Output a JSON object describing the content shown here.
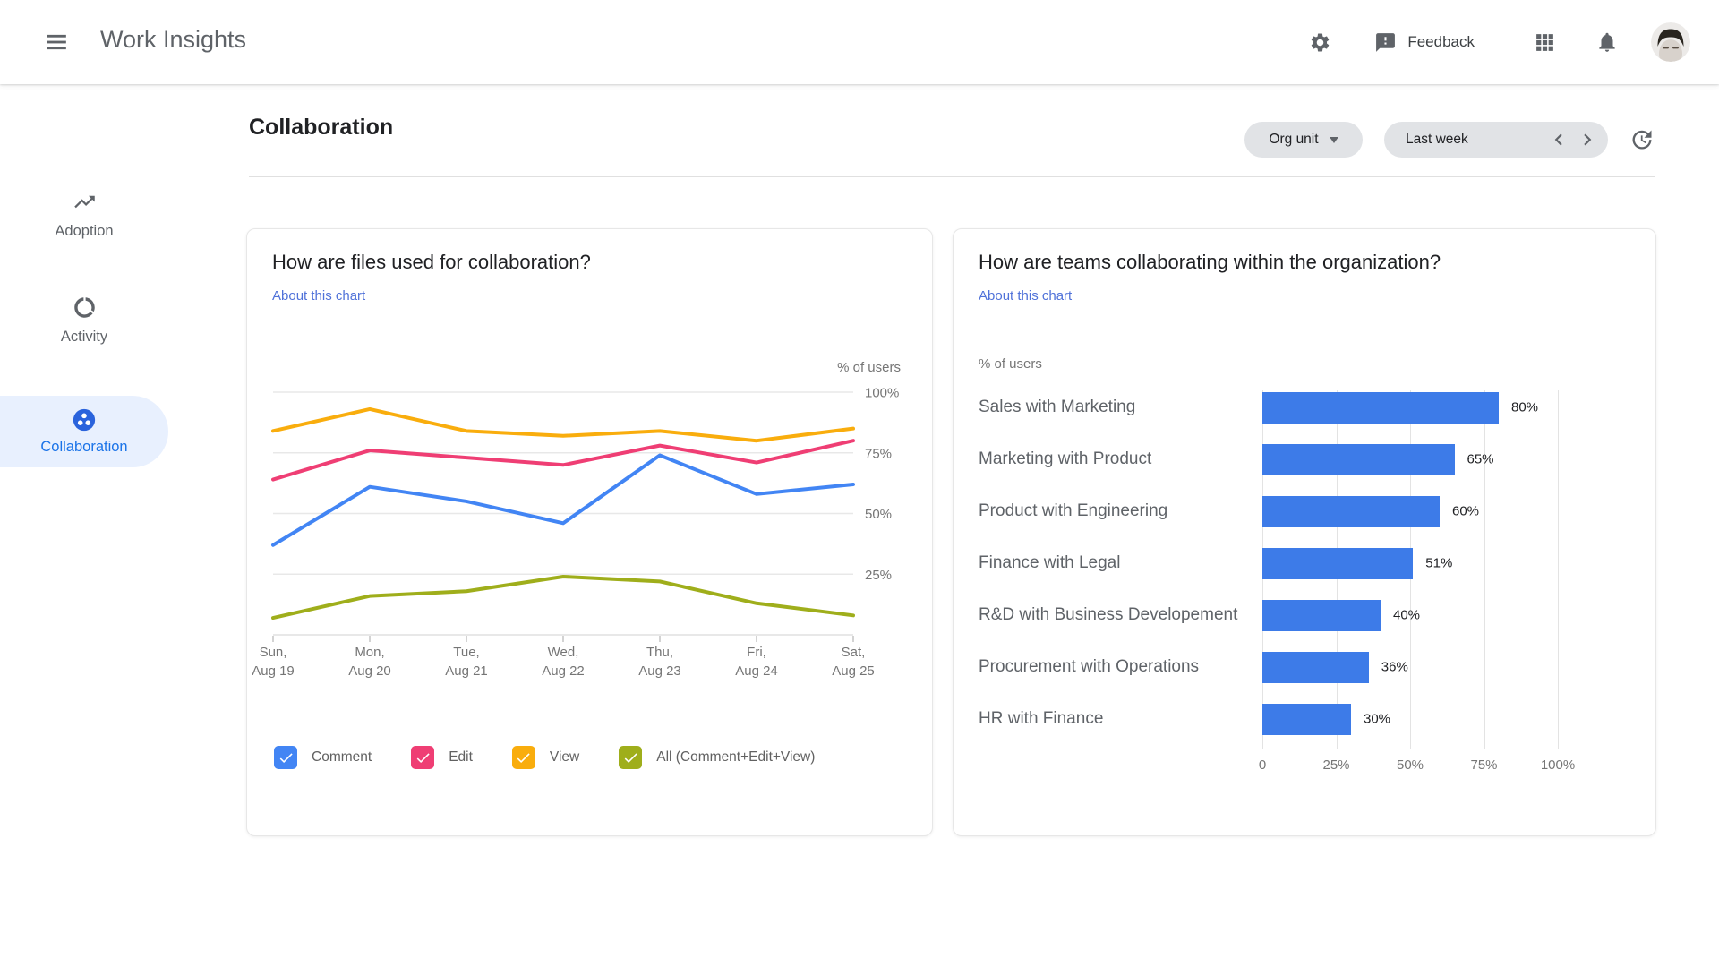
{
  "app_bar": {
    "title": "Work Insights",
    "feedback_label": "Feedback"
  },
  "sidebar": {
    "items": [
      {
        "label": "Adoption",
        "icon": "trending-up-icon",
        "selected": false
      },
      {
        "label": "Activity",
        "icon": "data-usage-icon",
        "selected": false
      },
      {
        "label": "Collaboration",
        "icon": "collaboration-icon",
        "selected": true
      }
    ]
  },
  "page": {
    "title": "Collaboration",
    "org_unit_label": "Org unit",
    "period_label": "Last week"
  },
  "colors": {
    "link_blue": "#5072d9",
    "sidebar_selected_bg": "#e8f0fe",
    "sidebar_selected_text": "#1a73e8",
    "collab_icon_blue": "#2a63dc",
    "icon_gray": "#5f6368"
  },
  "chart_data": [
    {
      "type": "line",
      "title": "How are files used for collaboration?",
      "about_link": "About this chart",
      "axis_caption": "% of users",
      "categories": [
        [
          "Sun,",
          "Aug 19"
        ],
        [
          "Mon,",
          "Aug 20"
        ],
        [
          "Tue,",
          "Aug 21"
        ],
        [
          "Wed,",
          "Aug 22"
        ],
        [
          "Thu,",
          "Aug 23"
        ],
        [
          "Fri,",
          "Aug 24"
        ],
        [
          "Sat,",
          "Aug 25"
        ]
      ],
      "ylim": [
        0,
        100
      ],
      "yticks": [
        {
          "value": 100,
          "label": "100%"
        },
        {
          "value": 75,
          "label": "75%"
        },
        {
          "value": 50,
          "label": "50%"
        },
        {
          "value": 25,
          "label": "25%"
        }
      ],
      "grid": true,
      "legend_position": "bottom",
      "series": [
        {
          "name": "Comment",
          "color": "#4285f4",
          "values": [
            37,
            61,
            55,
            46,
            74,
            58,
            62
          ]
        },
        {
          "name": "Edit",
          "color": "#ef3e74",
          "values": [
            64,
            76,
            73,
            70,
            78,
            71,
            80
          ]
        },
        {
          "name": "View",
          "color": "#f9ad0d",
          "values": [
            84,
            93,
            84,
            82,
            84,
            80,
            85
          ]
        },
        {
          "name": "All (Comment+Edit+View)",
          "color": "#9fae1b",
          "values": [
            7,
            16,
            18,
            24,
            22,
            13,
            8
          ]
        }
      ]
    },
    {
      "type": "bar",
      "title": "How are teams collaborating within the organization?",
      "about_link": "About this chart",
      "axis_caption": "% of users",
      "bar_color": "#3d7be8",
      "categories": [
        "Sales with Marketing",
        "Marketing with Product",
        "Product with Engineering",
        "Finance with Legal",
        "R&D with Business Developement",
        "Procurement with Operations",
        "HR with Finance"
      ],
      "values": [
        80,
        65,
        60,
        51,
        40,
        36,
        30
      ],
      "value_labels": [
        "80%",
        "65%",
        "60%",
        "51%",
        "40%",
        "36%",
        "30%"
      ],
      "xlim": [
        0,
        100
      ],
      "xticks": [
        {
          "value": 0,
          "label": "0"
        },
        {
          "value": 25,
          "label": "25%"
        },
        {
          "value": 50,
          "label": "50%"
        },
        {
          "value": 75,
          "label": "75%"
        },
        {
          "value": 100,
          "label": "100%"
        }
      ],
      "grid": true
    }
  ]
}
